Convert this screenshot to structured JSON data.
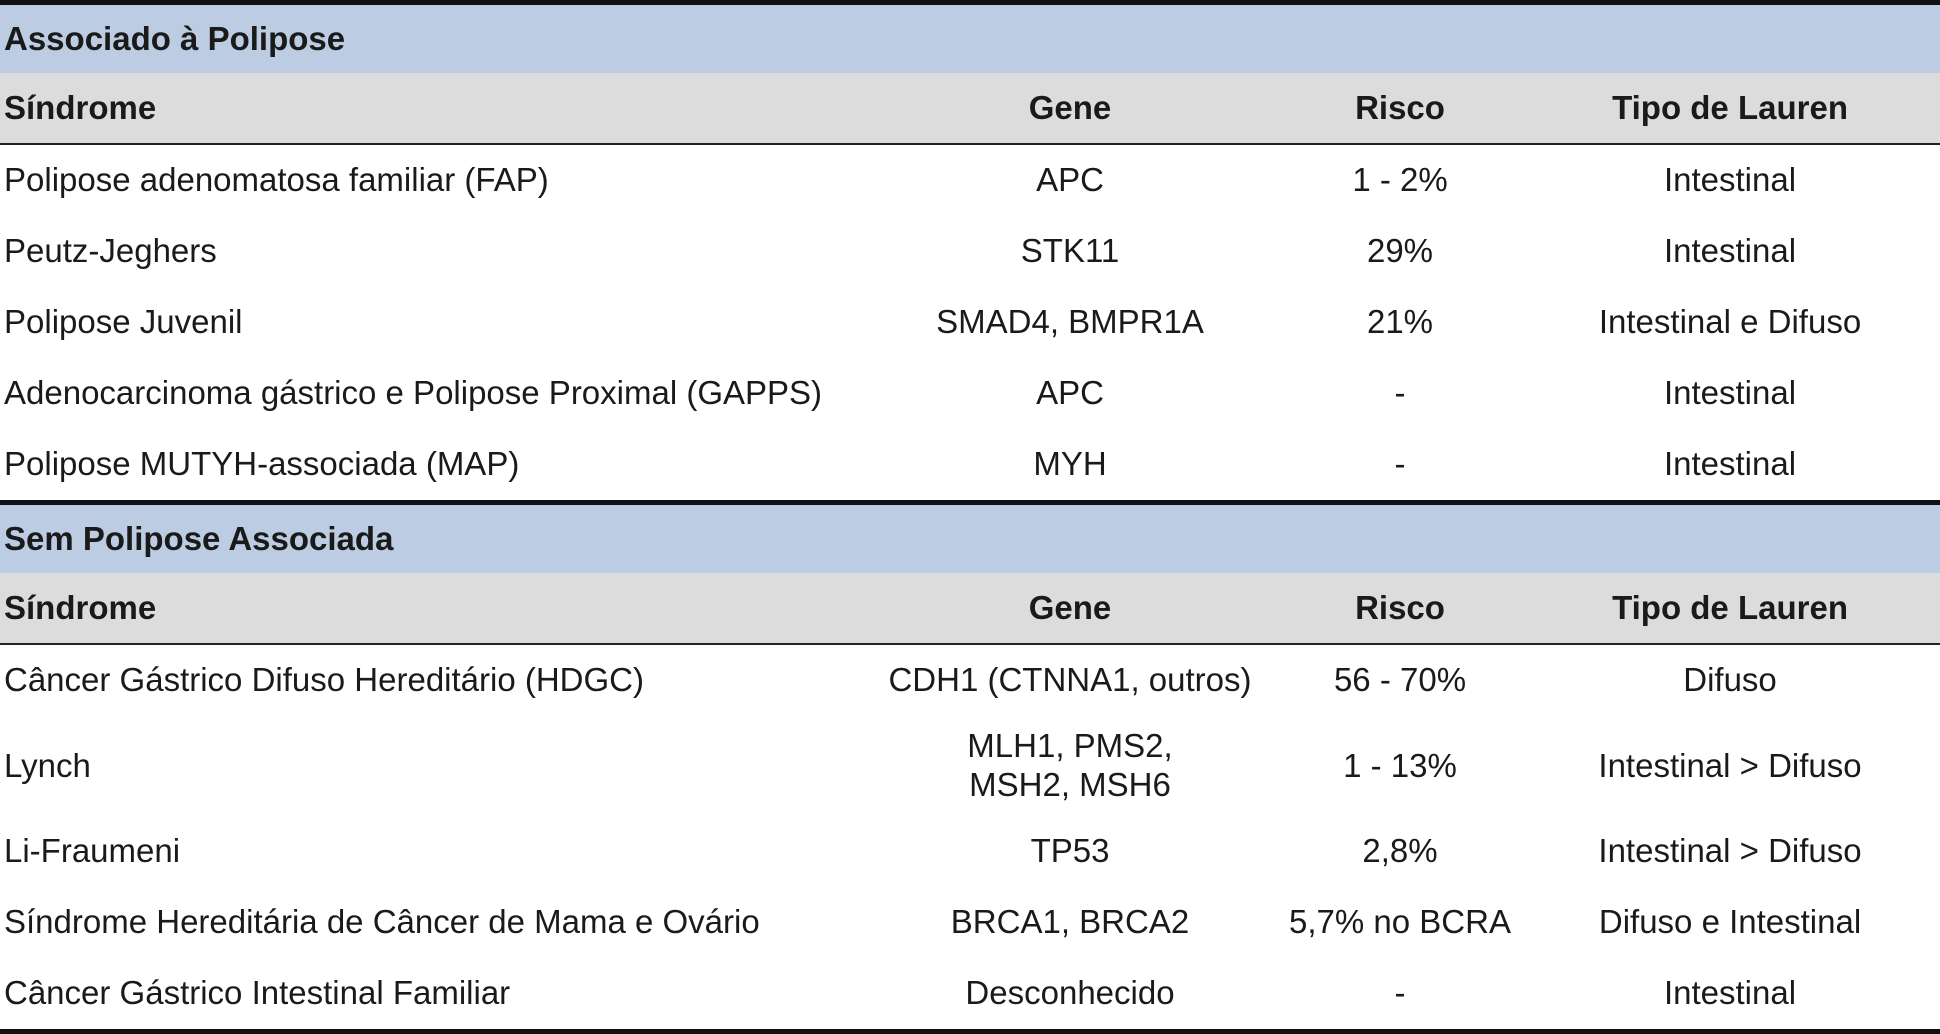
{
  "sections": [
    {
      "title": "Associado à Polipose",
      "headers": [
        "Síndrome",
        "Gene",
        "Risco",
        "Tipo de Lauren"
      ],
      "rows": [
        [
          "Polipose adenomatosa familiar (FAP)",
          "APC",
          "1 - 2%",
          "Intestinal"
        ],
        [
          "Peutz-Jeghers",
          "STK11",
          "29%",
          "Intestinal"
        ],
        [
          "Polipose Juvenil",
          "SMAD4, BMPR1A",
          "21%",
          "Intestinal e Difuso"
        ],
        [
          "Adenocarcinoma gástrico e Polipose Proximal (GAPPS)",
          "APC",
          "-",
          "Intestinal"
        ],
        [
          "Polipose MUTYH-associada (MAP)",
          "MYH",
          "-",
          "Intestinal"
        ]
      ]
    },
    {
      "title": "Sem Polipose Associada",
      "headers": [
        "Síndrome",
        "Gene",
        "Risco",
        "Tipo de Lauren"
      ],
      "rows": [
        [
          "Câncer Gástrico Difuso Hereditário (HDGC)",
          "CDH1 (CTNNA1, outros)",
          "56 - 70%",
          "Difuso"
        ],
        [
          "Lynch",
          "MLH1, PMS2, MSH2, MSH6",
          "1 - 13%",
          "Intestinal > Difuso"
        ],
        [
          "Li-Fraumeni",
          "TP53",
          "2,8%",
          "Intestinal > Difuso"
        ],
        [
          "Síndrome Hereditária de Câncer de Mama e Ovário",
          "BRCA1, BRCA2",
          "5,7% no BCRA",
          "Difuso e Intestinal"
        ],
        [
          "Câncer Gástrico Intestinal Familiar",
          "Desconhecido",
          "-",
          "Intestinal"
        ]
      ]
    }
  ]
}
